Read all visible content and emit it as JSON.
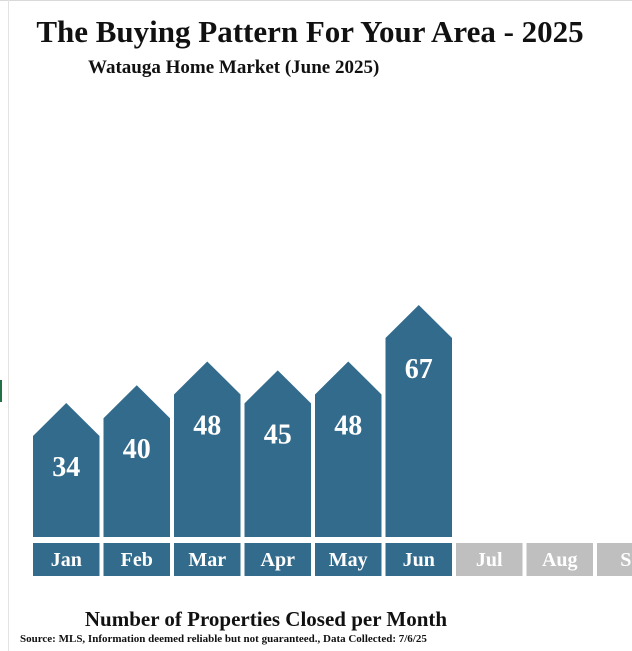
{
  "header": {
    "title": "The Buying Pattern For Your Area - 2025",
    "subtitle": "Watauga Home Market (June 2025)"
  },
  "footer": {
    "caption": "Number of Properties Closed per Month",
    "source": "Source: MLS, Information deemed reliable but not guaranteed., Data Collected: 7/6/25"
  },
  "colors": {
    "bar": "#336b8c",
    "label_active": "#336b8c",
    "label_inactive": "#bfbfbf",
    "value_text": "#ffffff"
  },
  "chart_data": {
    "type": "bar",
    "title": "The Buying Pattern For Your Area - 2025",
    "categories": [
      "Jan",
      "Feb",
      "Mar",
      "Apr",
      "May",
      "Jun",
      "Jul",
      "Aug",
      "Se"
    ],
    "values": [
      34,
      40,
      48,
      45,
      48,
      67,
      null,
      null,
      null
    ],
    "active_months": 6,
    "data_labels": true,
    "grid": false,
    "legend": "none",
    "bar_shape": "arrow-top"
  }
}
